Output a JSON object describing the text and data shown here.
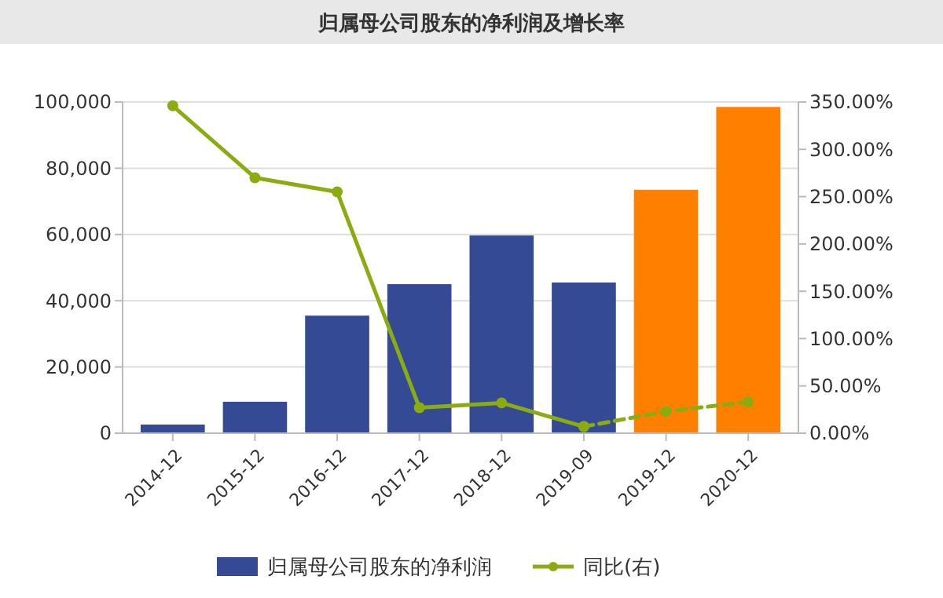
{
  "chart_data": {
    "type": "bar",
    "title": "归属母公司股东的净利润及增长率",
    "categories": [
      "2014-12",
      "2015-12",
      "2016-12",
      "2017-12",
      "2018-12",
      "2019-09",
      "2019-12",
      "2020-12"
    ],
    "series": [
      {
        "name": "归属母公司股东的净利润",
        "color": "#344a94",
        "colors": [
          "#344a94",
          "#344a94",
          "#344a94",
          "#344a94",
          "#344a94",
          "#344a94",
          "#ff7f00",
          "#ff7f00"
        ],
        "values": [
          2600,
          9500,
          35500,
          45000,
          59700,
          45500,
          73500,
          98500
        ]
      },
      {
        "name": "同比(右)",
        "type": "line",
        "axis": "y2",
        "color": "#8aac10",
        "line_style": "solid",
        "marker": "circle",
        "values": [
          346,
          270,
          255,
          27,
          32,
          7,
          null,
          null
        ]
      },
      {
        "type": "line",
        "axis": "y2",
        "color": "#8aac10",
        "line_style": "dashed",
        "marker": "circle",
        "values": [
          null,
          null,
          null,
          null,
          null,
          7,
          23,
          33
        ]
      }
    ],
    "ylim": [
      0,
      100000
    ],
    "yticks": [
      {
        "value": 0,
        "label": "0"
      },
      {
        "value": 20000,
        "label": "20,000"
      },
      {
        "value": 40000,
        "label": "40,000"
      },
      {
        "value": 60000,
        "label": "60,000"
      },
      {
        "value": 80000,
        "label": "80,000"
      },
      {
        "value": 100000,
        "label": "100,000"
      }
    ],
    "y2lim": [
      0,
      350
    ],
    "y2ticks": [
      {
        "value": 0,
        "label": "0.00%"
      },
      {
        "value": 50,
        "label": "50.00%"
      },
      {
        "value": 100,
        "label": "100.00%"
      },
      {
        "value": 150,
        "label": "150.00%"
      },
      {
        "value": 200,
        "label": "200.00%"
      },
      {
        "value": 250,
        "label": "250.00%"
      },
      {
        "value": 300,
        "label": "300.00%"
      },
      {
        "value": 350,
        "label": "350.00%"
      }
    ],
    "grid": "y",
    "legend": "bottom"
  }
}
